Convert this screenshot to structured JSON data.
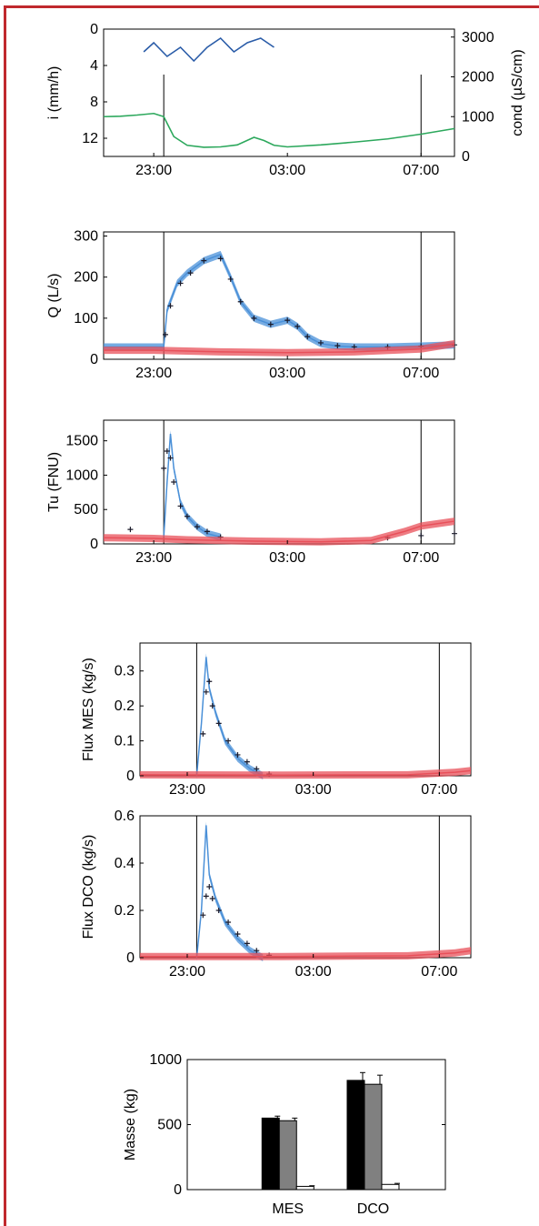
{
  "chart_data": [
    {
      "id": "rain_cond",
      "type": "line",
      "x_ticks": [
        "23:00",
        "03:00",
        "07:00"
      ],
      "x_range_hours": [
        21.5,
        32.0
      ],
      "markers": [
        23.3,
        31.0
      ],
      "ylabel": "i (mm/h)",
      "ylim": [
        14,
        0
      ],
      "y_ticks": [
        "0",
        "4",
        "8",
        "12"
      ],
      "y2label": "cond (µS/cm)",
      "y2lim": [
        0,
        3200
      ],
      "y2_ticks": [
        "0",
        "1000",
        "2000",
        "3000"
      ],
      "series": [
        {
          "axis": "left",
          "color": "#2a5ca8",
          "x": [
            22.7,
            23.0,
            23.4,
            23.8,
            24.2,
            24.6,
            25.0,
            25.4,
            25.8,
            26.2,
            26.6
          ],
          "y": [
            2.5,
            1.5,
            3.0,
            2.0,
            3.5,
            2.0,
            1.0,
            2.5,
            1.5,
            1.0,
            2.0
          ]
        },
        {
          "axis": "right",
          "color": "#2ca85c",
          "x": [
            21.5,
            22.0,
            22.5,
            23.0,
            23.3,
            23.6,
            24.0,
            24.5,
            25.0,
            25.5,
            26.0,
            26.3,
            26.6,
            27.0,
            28.0,
            29.0,
            30.0,
            31.0,
            32.0
          ],
          "y": [
            1000,
            1010,
            1040,
            1080,
            1000,
            500,
            280,
            230,
            240,
            290,
            480,
            400,
            280,
            240,
            290,
            360,
            440,
            560,
            700
          ]
        }
      ]
    },
    {
      "id": "discharge",
      "type": "line",
      "x_ticks": [
        "23:00",
        "03:00",
        "07:00"
      ],
      "x_range_hours": [
        21.5,
        32.0
      ],
      "markers": [
        23.3,
        31.0
      ],
      "ylabel": "Q (L/s)",
      "ylim": [
        0,
        310
      ],
      "y_ticks": [
        "0",
        "100",
        "200",
        "300"
      ],
      "series": [
        {
          "style": "band",
          "color": "#4a90d8",
          "x": [
            21.5,
            23.3,
            23.4,
            23.7,
            24.0,
            24.5,
            25.0,
            25.3,
            25.6,
            26.0,
            26.5,
            27.0,
            27.3,
            27.6,
            28.0,
            28.5,
            29.0,
            30.0,
            31.0,
            32.0
          ],
          "y": [
            30,
            30,
            120,
            185,
            210,
            240,
            255,
            200,
            140,
            100,
            85,
            95,
            80,
            55,
            38,
            32,
            30,
            30,
            32,
            35
          ]
        },
        {
          "style": "marker",
          "color": "#1a1a2a",
          "x": [
            23.35,
            23.5,
            23.8,
            24.1,
            24.5,
            25.0,
            25.3,
            25.6,
            26.0,
            26.5,
            27.0,
            27.3,
            27.6,
            28.0,
            28.5,
            29.0,
            30.0,
            31.0,
            32.0
          ],
          "y": [
            60,
            130,
            185,
            210,
            240,
            245,
            195,
            140,
            100,
            85,
            95,
            80,
            55,
            40,
            33,
            30,
            30,
            32,
            35
          ]
        },
        {
          "style": "band",
          "color": "#e8505a",
          "x": [
            21.5,
            23.0,
            25.0,
            27.0,
            29.0,
            31.0,
            32.0
          ],
          "y": [
            22,
            22,
            18,
            16,
            18,
            25,
            38
          ]
        }
      ]
    },
    {
      "id": "turbidity",
      "type": "line",
      "x_ticks": [
        "23:00",
        "03:00",
        "07:00"
      ],
      "x_range_hours": [
        21.5,
        32.0
      ],
      "markers": [
        23.3,
        31.0
      ],
      "ylabel": "Tu (FNU)",
      "ylim": [
        0,
        1800
      ],
      "y_ticks": [
        "0",
        "500",
        "1000",
        "1500"
      ],
      "series": [
        {
          "style": "band",
          "color": "#4a90d8",
          "x": [
            23.3,
            23.4,
            23.5,
            23.6,
            23.8,
            24.0,
            24.3,
            24.6,
            25.0
          ],
          "y": [
            100,
            900,
            1600,
            1100,
            600,
            400,
            250,
            150,
            100
          ]
        },
        {
          "style": "marker",
          "color": "#1a1a2a",
          "x": [
            22.3,
            23.3,
            23.4,
            23.5,
            23.6,
            23.8,
            24.0,
            24.3,
            24.6,
            25.0,
            30.0,
            31.0,
            32.0
          ],
          "y": [
            210,
            1100,
            1350,
            1250,
            900,
            550,
            400,
            250,
            180,
            100,
            90,
            120,
            150
          ]
        },
        {
          "style": "band",
          "color": "#e8505a",
          "x": [
            21.5,
            23.0,
            24.0,
            26.0,
            28.0,
            29.5,
            30.5,
            31.0,
            32.0
          ],
          "y": [
            90,
            80,
            60,
            40,
            30,
            50,
            180,
            260,
            330
          ]
        }
      ]
    },
    {
      "id": "flux_mes",
      "type": "line",
      "x_ticks": [
        "23:00",
        "03:00",
        "07:00"
      ],
      "x_range_hours": [
        21.5,
        32.0
      ],
      "markers": [
        23.3,
        31.0
      ],
      "ylabel": "Flux MES (kg/s)",
      "ylim": [
        0,
        0.38
      ],
      "y_ticks": [
        "0",
        "0.1",
        "0.2",
        "0.3"
      ],
      "series": [
        {
          "style": "band",
          "color": "#4a90d8",
          "x": [
            23.3,
            23.45,
            23.6,
            23.7,
            23.9,
            24.2,
            24.6,
            25.0,
            25.4
          ],
          "y": [
            0.0,
            0.15,
            0.34,
            0.25,
            0.18,
            0.1,
            0.05,
            0.02,
            0.0
          ]
        },
        {
          "style": "marker",
          "color": "#1a1a2a",
          "x": [
            23.5,
            23.6,
            23.7,
            23.8,
            24.0,
            24.3,
            24.6,
            24.9,
            25.2,
            25.6
          ],
          "y": [
            0.12,
            0.24,
            0.27,
            0.2,
            0.15,
            0.1,
            0.06,
            0.04,
            0.02,
            0.005
          ]
        },
        {
          "style": "band",
          "color": "#e8505a",
          "x": [
            21.5,
            26.0,
            30.0,
            31.5,
            32.0
          ],
          "y": [
            0.003,
            0.002,
            0.003,
            0.01,
            0.015
          ]
        }
      ]
    },
    {
      "id": "flux_dco",
      "type": "line",
      "x_ticks": [
        "23:00",
        "03:00",
        "07:00"
      ],
      "x_range_hours": [
        21.5,
        32.0
      ],
      "markers": [
        23.3,
        31.0
      ],
      "ylabel": "Flux DCO (kg/s)",
      "ylim": [
        0,
        0.6
      ],
      "y_ticks": [
        "0",
        "0.2",
        "0.4",
        "0.6"
      ],
      "series": [
        {
          "style": "band",
          "color": "#4a90d8",
          "x": [
            23.3,
            23.45,
            23.6,
            23.7,
            23.9,
            24.2,
            24.6,
            25.0,
            25.4
          ],
          "y": [
            0.0,
            0.2,
            0.56,
            0.35,
            0.25,
            0.15,
            0.08,
            0.03,
            0.0
          ]
        },
        {
          "style": "marker",
          "color": "#1a1a2a",
          "x": [
            23.5,
            23.6,
            23.7,
            23.8,
            24.0,
            24.3,
            24.6,
            24.9,
            25.2,
            25.6
          ],
          "y": [
            0.18,
            0.26,
            0.3,
            0.25,
            0.2,
            0.15,
            0.1,
            0.06,
            0.03,
            0.01
          ]
        },
        {
          "style": "band",
          "color": "#e8505a",
          "x": [
            21.5,
            26.0,
            30.0,
            31.5,
            32.0
          ],
          "y": [
            0.005,
            0.005,
            0.008,
            0.02,
            0.03
          ]
        }
      ]
    },
    {
      "id": "masses",
      "type": "bar",
      "ylabel": "Masse (kg)",
      "ylim": [
        0,
        1000
      ],
      "y_ticks": [
        "0",
        "500",
        "1000"
      ],
      "categories": [
        "MES",
        "DCO"
      ],
      "series": [
        {
          "color": "#000000",
          "values": [
            550,
            840
          ],
          "err": [
            15,
            60
          ]
        },
        {
          "color": "#808080",
          "values": [
            530,
            810
          ],
          "err": [
            20,
            70
          ]
        },
        {
          "color": "#ffffff",
          "values": [
            25,
            40
          ],
          "err": [
            5,
            8
          ]
        }
      ]
    }
  ]
}
